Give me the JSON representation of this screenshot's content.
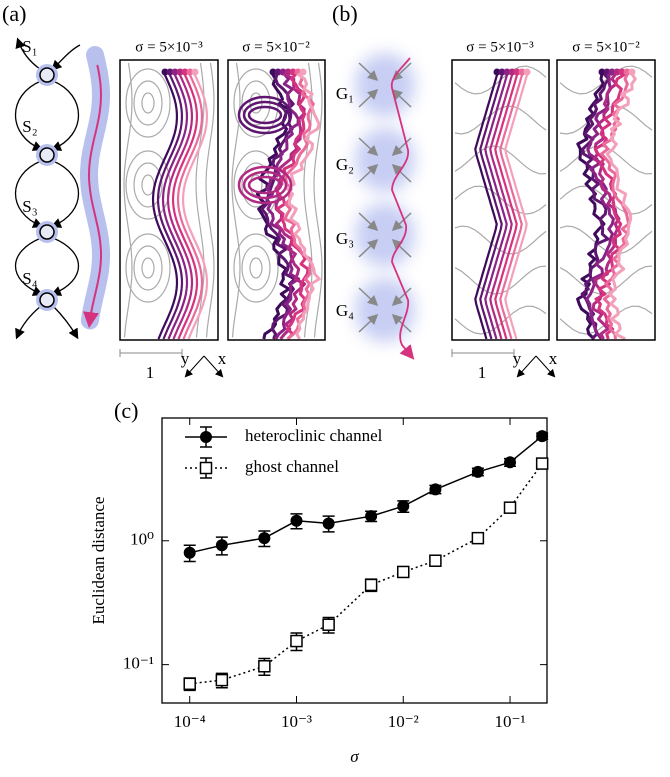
{
  "panels": {
    "a": {
      "label": "(a)",
      "nodes": [
        "S₁",
        "S₂",
        "S₃",
        "S₄"
      ],
      "sigma_labels": [
        "σ = 5×10⁻³",
        "σ = 5×10⁻²"
      ],
      "scale": "1",
      "axes": [
        "y",
        "x"
      ]
    },
    "b": {
      "label": "(b)",
      "nodes": [
        "G₁",
        "G₂",
        "G₃",
        "G₄"
      ],
      "sigma_labels": [
        "σ = 5×10⁻³",
        "σ = 5×10⁻²"
      ],
      "scale": "1",
      "axes": [
        "y",
        "x"
      ]
    },
    "c": {
      "label": "(c)"
    }
  },
  "chart_data": {
    "type": "line",
    "xlabel": "σ",
    "ylabel": "Euclidean distance",
    "xscale": "log",
    "yscale": "log",
    "legend": "upper left",
    "x": [
      0.0001,
      0.0002,
      0.0005,
      0.001,
      0.002,
      0.005,
      0.01,
      0.02,
      0.05,
      0.1,
      0.2
    ],
    "series": [
      {
        "name": "heteroclinic channel",
        "color": "#000000",
        "marker": "circle",
        "linestyle": "solid",
        "values": [
          0.8,
          0.92,
          1.05,
          1.45,
          1.38,
          1.58,
          1.9,
          2.6,
          3.6,
          4.3,
          7.0
        ],
        "errors": [
          0.12,
          0.15,
          0.15,
          0.2,
          0.2,
          0.15,
          0.2,
          0.2,
          0.25,
          0.3,
          0.4
        ]
      },
      {
        "name": "ghost channel",
        "color": "#000000",
        "marker": "square",
        "linestyle": "dotted",
        "values": [
          0.07,
          0.075,
          0.097,
          0.155,
          0.21,
          0.44,
          0.56,
          0.69,
          1.05,
          1.85,
          4.2
        ],
        "errors": [
          0.008,
          0.01,
          0.015,
          0.025,
          0.03,
          0.05,
          0.05,
          0.05,
          0.07,
          0.1,
          0.2
        ]
      }
    ],
    "xlim": [
      5.5e-05,
      0.222
    ],
    "ylim": [
      0.049,
      9.8
    ],
    "xticks": [
      {
        "value": 0.0001,
        "label": "10⁻⁴"
      },
      {
        "value": 0.001,
        "label": "10⁻³"
      },
      {
        "value": 0.01,
        "label": "10⁻²"
      },
      {
        "value": 0.1,
        "label": "10⁻¹"
      }
    ],
    "yticks": [
      {
        "value": 0.1,
        "label": "10⁻¹"
      },
      {
        "value": 1,
        "label": "10⁰"
      }
    ]
  }
}
